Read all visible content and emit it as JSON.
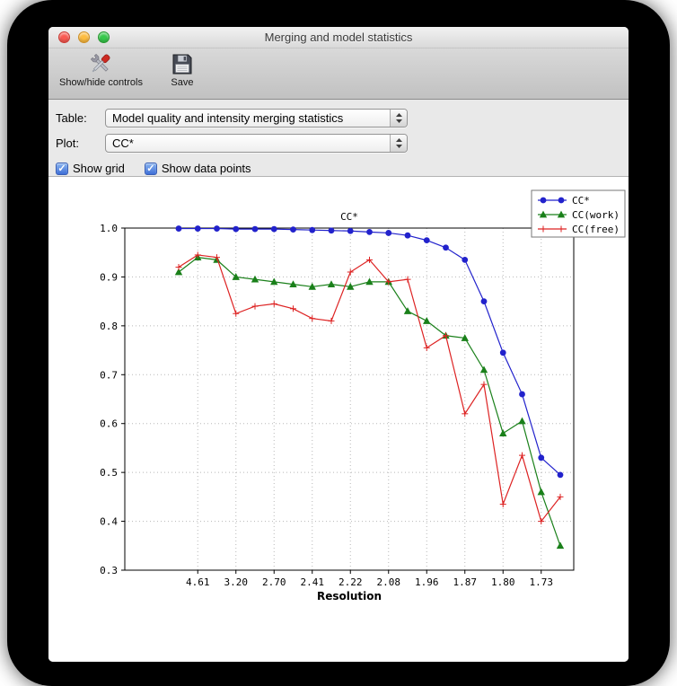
{
  "window": {
    "title": "Merging and model statistics",
    "traffic_lights": {
      "close": "#f95a52",
      "minimize": "#fdbc40",
      "zoom": "#36c84b"
    }
  },
  "toolbar": {
    "items": [
      {
        "label": "Show/hide controls",
        "icon": "tools-icon"
      },
      {
        "label": "Save",
        "icon": "save-icon"
      }
    ]
  },
  "controls": {
    "table": {
      "label": "Table:",
      "value": "Model quality and intensity merging statistics"
    },
    "plot": {
      "label": "Plot:",
      "value": "CC*"
    },
    "checkboxes": [
      {
        "label": "Show grid",
        "checked": true
      },
      {
        "label": "Show data points",
        "checked": true
      }
    ],
    "check_glyph": "✓",
    "popup_arrows_icon": "up-down-arrows-icon"
  },
  "chart_data": {
    "type": "line",
    "title": "CC*",
    "xlabel": "Resolution",
    "ylabel": "",
    "ylim": [
      0.3,
      1.0
    ],
    "yticks": [
      0.3,
      0.4,
      0.5,
      0.6,
      0.7,
      0.8,
      0.9,
      1.0
    ],
    "xtick_labels": [
      "4.61",
      "3.20",
      "2.70",
      "2.41",
      "2.22",
      "2.08",
      "1.96",
      "1.87",
      "1.80",
      "1.73"
    ],
    "xtick_indices": [
      1,
      3,
      5,
      7,
      9,
      11,
      13,
      15,
      17,
      19
    ],
    "grid": true,
    "show_data_points": true,
    "legend_position": "upper right",
    "series": [
      {
        "name": "CC*",
        "color": "#2222cc",
        "marker": "circle",
        "values": [
          0.999,
          0.999,
          0.999,
          0.998,
          0.998,
          0.998,
          0.997,
          0.996,
          0.995,
          0.994,
          0.992,
          0.99,
          0.985,
          0.975,
          0.96,
          0.935,
          0.85,
          0.745,
          0.66,
          0.53,
          0.495
        ]
      },
      {
        "name": "CC(work)",
        "color": "#1a801a",
        "marker": "triangle",
        "values": [
          0.91,
          0.94,
          0.935,
          0.9,
          0.895,
          0.89,
          0.885,
          0.88,
          0.885,
          0.88,
          0.89,
          0.89,
          0.83,
          0.81,
          0.78,
          0.775,
          0.71,
          0.58,
          0.605,
          0.46,
          0.35
        ]
      },
      {
        "name": "CC(free)",
        "color": "#dd2222",
        "marker": "plus",
        "values": [
          0.92,
          0.945,
          0.94,
          0.825,
          0.84,
          0.845,
          0.835,
          0.815,
          0.81,
          0.91,
          0.935,
          0.89,
          0.895,
          0.755,
          0.78,
          0.62,
          0.68,
          0.435,
          0.535,
          0.4,
          0.45
        ]
      }
    ]
  }
}
